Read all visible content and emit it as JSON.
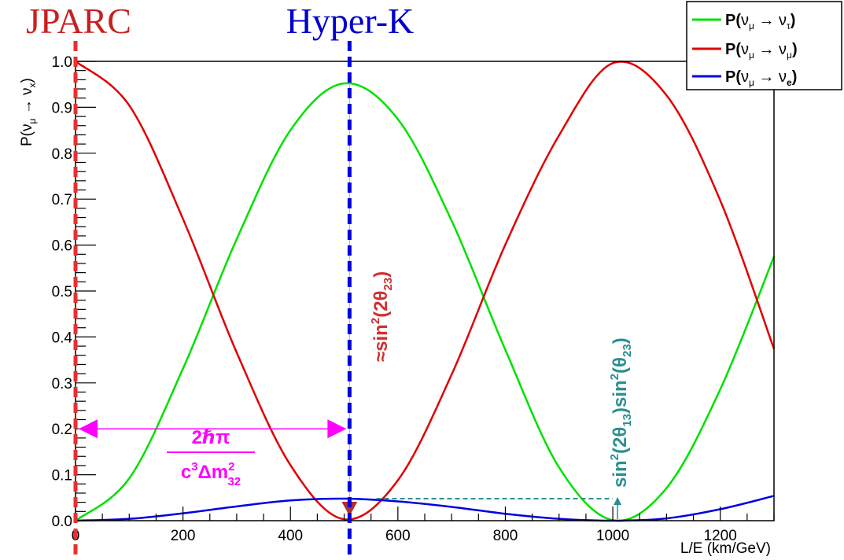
{
  "chart_data": {
    "type": "line",
    "xlabel": "L/E (km/GeV)",
    "ylabel": {
      "p": "P(",
      "nu1": "ν",
      "mu": "μ",
      "arrow": " → ",
      "nu2": "ν",
      "x": "x",
      "close": ")"
    },
    "xlim": [
      0,
      1300
    ],
    "ylim": [
      0,
      1.0
    ],
    "xticks": [
      {
        "v": 0,
        "label": "0"
      },
      {
        "v": 200,
        "label": "200"
      },
      {
        "v": 400,
        "label": "400"
      },
      {
        "v": 600,
        "label": "600"
      },
      {
        "v": 800,
        "label": "800"
      },
      {
        "v": 1000,
        "label": "1000"
      },
      {
        "v": 1200,
        "label": "1200"
      }
    ],
    "yticks": [
      {
        "v": 0.0,
        "label": "0.0"
      },
      {
        "v": 0.1,
        "label": "0.1"
      },
      {
        "v": 0.2,
        "label": "0.2"
      },
      {
        "v": 0.3,
        "label": "0.3"
      },
      {
        "v": 0.4,
        "label": "0.4"
      },
      {
        "v": 0.5,
        "label": "0.5"
      },
      {
        "v": 0.6,
        "label": "0.6"
      },
      {
        "v": 0.7,
        "label": "0.7"
      },
      {
        "v": 0.8,
        "label": "0.8"
      },
      {
        "v": 0.9,
        "label": "0.9"
      },
      {
        "v": 1.0,
        "label": "1.0"
      }
    ],
    "grid": false,
    "legend_position": "top-right",
    "series": [
      {
        "key": "tau",
        "color": "#00e000",
        "legend": {
          "p": "P(",
          "nu1": "ν",
          "mu": "μ",
          "arrow": " → ",
          "nu2": "ν",
          "sub": "τ",
          "close": ")"
        },
        "x": [
          0,
          100,
          200,
          300,
          400,
          500,
          600,
          700,
          800,
          900,
          1000,
          1100,
          1200,
          1300
        ],
        "y": [
          0.0,
          0.092,
          0.331,
          0.613,
          0.85,
          0.952,
          0.874,
          0.653,
          0.372,
          0.116,
          0.001,
          0.071,
          0.286,
          0.575
        ]
      },
      {
        "key": "mu",
        "color": "#e00000",
        "legend": {
          "p": "P(",
          "nu1": "ν",
          "mu": "μ",
          "arrow": " → ",
          "nu2": "ν",
          "sub": "μ",
          "close": ")"
        },
        "x": [
          0,
          100,
          200,
          300,
          400,
          500,
          600,
          700,
          800,
          900,
          1000,
          1100,
          1200,
          1300
        ],
        "y": [
          1.0,
          0.904,
          0.657,
          0.366,
          0.121,
          0.003,
          0.088,
          0.318,
          0.601,
          0.839,
          0.996,
          0.926,
          0.697,
          0.374
        ]
      },
      {
        "key": "e",
        "color": "#0000e0",
        "legend": {
          "p": "P(",
          "nu1": "ν",
          "mu": "μ",
          "arrow": " → ",
          "nu2": "ν",
          "sub": "e",
          "close": ")"
        },
        "x": [
          0,
          100,
          200,
          300,
          400,
          500,
          600,
          700,
          800,
          900,
          1000,
          1100,
          1200,
          1300
        ],
        "y": [
          0.0,
          0.004,
          0.016,
          0.031,
          0.044,
          0.048,
          0.042,
          0.03,
          0.015,
          0.004,
          0.0,
          0.005,
          0.025,
          0.054
        ]
      }
    ],
    "markers": [
      {
        "key": "jparc",
        "x": 0,
        "color": "#e83030",
        "label": "JPARC",
        "label_color": "#c82020"
      },
      {
        "key": "hyperk",
        "x": 510,
        "color": "#0000dd",
        "label": "Hyper-K",
        "label_color": "#0000cc"
      }
    ],
    "annotations": {
      "period": {
        "x_from": 0,
        "x_to": 510,
        "y": 0.2,
        "color": "#ff00ff",
        "numerator": "2ℏπ",
        "denominator": {
          "c": "c",
          "exp": "3",
          "delta": "Δm",
          "sup": "2",
          "sub": "32"
        }
      },
      "amp23": {
        "x": 510,
        "color": "#d03030",
        "text": {
          "approx": "≈",
          "sin": "sin",
          "sup": "2",
          "open": "(2θ",
          "sub": "23",
          "close": ")"
        }
      },
      "amp13": {
        "x_from": 560,
        "x_to": 1000,
        "y": 0.048,
        "color": "#2a9090",
        "text": {
          "sin1": "sin",
          "sup1": "2",
          "mid": "(2θ",
          "sub1": "13",
          "mid2": ")sin",
          "sup2": "2",
          "open2": "(θ",
          "sub2": "23",
          "close": ")"
        }
      }
    }
  }
}
